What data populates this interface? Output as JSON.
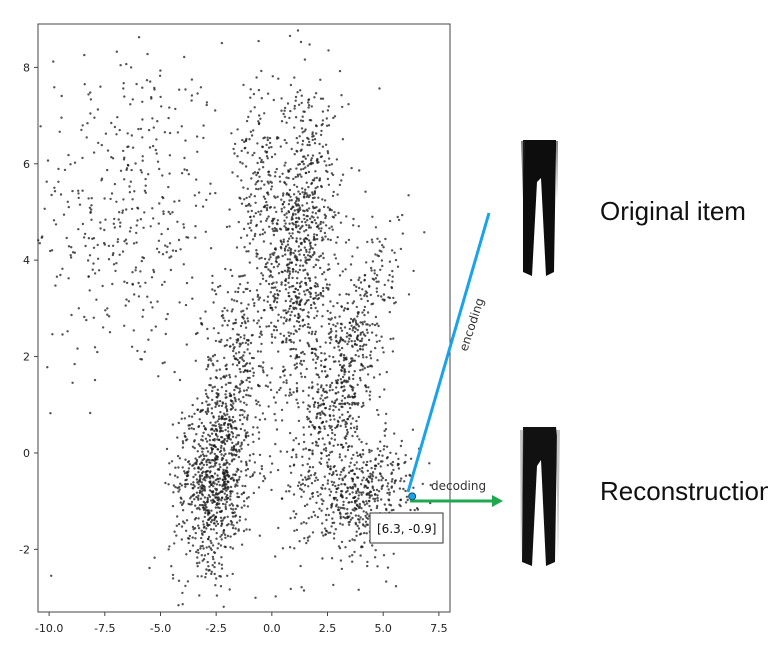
{
  "chart_data": {
    "type": "scatter",
    "title": "",
    "xlabel": "",
    "ylabel": "",
    "xlim": [
      -10.5,
      8.0
    ],
    "ylim": [
      -3.3,
      8.9
    ],
    "x_ticks": [
      -10.0,
      -7.5,
      -5.0,
      -2.5,
      0.0,
      2.5,
      5.0,
      7.5
    ],
    "x_tick_labels": [
      "-10.0",
      "-7.5",
      "-5.0",
      "-2.5",
      "0.0",
      "2.5",
      "5.0",
      "7.5"
    ],
    "y_ticks": [
      -2,
      0,
      2,
      4,
      6,
      8
    ],
    "y_tick_labels": [
      "-2",
      "0",
      "2",
      "4",
      "6",
      "8"
    ],
    "grid": false,
    "point_color": "#1a1a1a",
    "point_count_approx": 4000,
    "clusters": [
      {
        "cx": -6.5,
        "cy": 5.0,
        "sx": 2.2,
        "sy": 1.8,
        "n": 420,
        "angle": 0
      },
      {
        "cx": -2.2,
        "cy": 0.4,
        "sx": 0.7,
        "sy": 1.6,
        "n": 700,
        "angle": -20
      },
      {
        "cx": -2.6,
        "cy": -0.7,
        "sx": 0.9,
        "sy": 0.8,
        "n": 450,
        "angle": 0
      },
      {
        "cx": 1.3,
        "cy": 4.2,
        "sx": 0.8,
        "sy": 1.8,
        "n": 900,
        "angle": -10
      },
      {
        "cx": 3.2,
        "cy": 1.6,
        "sx": 0.7,
        "sy": 1.6,
        "n": 650,
        "angle": -35
      },
      {
        "cx": 4.0,
        "cy": -0.9,
        "sx": 1.2,
        "sy": 0.6,
        "n": 500,
        "angle": 10
      },
      {
        "cx": -0.5,
        "cy": 5.3,
        "sx": 0.6,
        "sy": 1.2,
        "n": 220,
        "angle": 0
      }
    ],
    "highlight_point": {
      "x": 6.3,
      "y": -0.9,
      "label": "[6.3, -0.9]"
    }
  },
  "annotations": {
    "encoding_label": "encoding",
    "decoding_label": "decoding",
    "original_label": "Original item",
    "reconstruction_label": "Reconstruction",
    "encoding_color": "#1aa3e8",
    "decoding_color": "#1fa84f"
  }
}
